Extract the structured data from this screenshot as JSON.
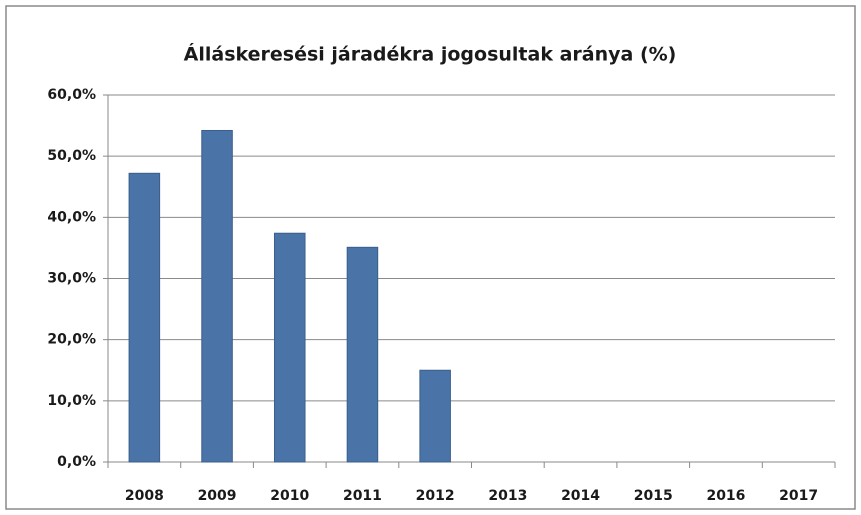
{
  "chart_data": {
    "type": "bar",
    "title": "Álláskeresési járadékra jogosultak aránya (%)",
    "categories": [
      "2008",
      "2009",
      "2010",
      "2011",
      "2012",
      "2013",
      "2014",
      "2015",
      "2016",
      "2017"
    ],
    "values": [
      47.2,
      54.2,
      37.4,
      35.1,
      15.0,
      null,
      null,
      null,
      null,
      null
    ],
    "color": "#4a73a8",
    "ylim": [
      0,
      60
    ],
    "yticks": [
      {
        "value": 0,
        "label": "0,0%"
      },
      {
        "value": 10,
        "label": "10,0%"
      },
      {
        "value": 20,
        "label": "20,0%"
      },
      {
        "value": 30,
        "label": "30,0%"
      },
      {
        "value": 40,
        "label": "40,0%"
      },
      {
        "value": 50,
        "label": "50,0%"
      },
      {
        "value": 60,
        "label": "60,0%"
      }
    ],
    "grid": true
  }
}
